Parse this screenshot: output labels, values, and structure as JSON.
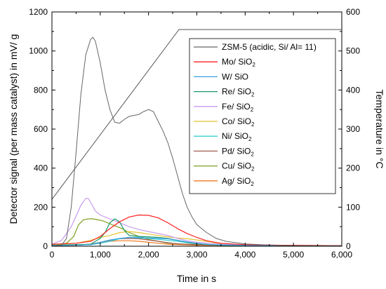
{
  "chart_data": {
    "type": "line",
    "title": "",
    "xlabel": "Time in s",
    "ylabel": "Detector signal (per mass catalyst) in mV/ g",
    "y2label": "Temperature in °C",
    "xlim": [
      0,
      6000
    ],
    "ylim": [
      0,
      1200
    ],
    "y2lim": [
      0,
      600
    ],
    "x_ticks": [
      0,
      1000,
      2000,
      3000,
      4000,
      5000,
      6000
    ],
    "x_tick_labels": [
      "0",
      "1,000",
      "2,000",
      "3,000",
      "4,000",
      "5,000",
      "6,000"
    ],
    "y_ticks": [
      0,
      200,
      400,
      600,
      800,
      1000,
      1200
    ],
    "y2_ticks": [
      0,
      100,
      200,
      300,
      400,
      500,
      600
    ],
    "grid": false,
    "legend_position": "top-right",
    "temperature": {
      "axis": "right",
      "color": "#555555",
      "points": [
        [
          0,
          120
        ],
        [
          2630,
          555
        ],
        [
          6000,
          555
        ]
      ]
    },
    "series": [
      {
        "name": "ZSM-5 (acidic, Si/ Al= 11)",
        "color": "#666666",
        "points": [
          [
            0,
            0
          ],
          [
            200,
            5
          ],
          [
            300,
            40
          ],
          [
            400,
            200
          ],
          [
            500,
            480
          ],
          [
            600,
            780
          ],
          [
            700,
            980
          ],
          [
            800,
            1060
          ],
          [
            850,
            1070
          ],
          [
            900,
            1050
          ],
          [
            1000,
            940
          ],
          [
            1100,
            800
          ],
          [
            1200,
            700
          ],
          [
            1300,
            635
          ],
          [
            1400,
            630
          ],
          [
            1500,
            650
          ],
          [
            1600,
            665
          ],
          [
            1700,
            670
          ],
          [
            1800,
            675
          ],
          [
            1900,
            690
          ],
          [
            2000,
            700
          ],
          [
            2100,
            690
          ],
          [
            2200,
            640
          ],
          [
            2300,
            590
          ],
          [
            2400,
            530
          ],
          [
            2500,
            450
          ],
          [
            2600,
            360
          ],
          [
            2700,
            270
          ],
          [
            2800,
            200
          ],
          [
            2900,
            150
          ],
          [
            3000,
            110
          ],
          [
            3200,
            70
          ],
          [
            3400,
            40
          ],
          [
            3600,
            25
          ],
          [
            4000,
            12
          ],
          [
            4600,
            5
          ],
          [
            5000,
            3
          ],
          [
            6000,
            2
          ]
        ]
      },
      {
        "name": "Mo/ SiO2",
        "color": "#ff2020",
        "points": [
          [
            0,
            10
          ],
          [
            500,
            15
          ],
          [
            800,
            25
          ],
          [
            1000,
            50
          ],
          [
            1200,
            90
          ],
          [
            1400,
            125
          ],
          [
            1600,
            150
          ],
          [
            1800,
            160
          ],
          [
            2000,
            158
          ],
          [
            2200,
            145
          ],
          [
            2400,
            120
          ],
          [
            2600,
            90
          ],
          [
            2800,
            65
          ],
          [
            3000,
            45
          ],
          [
            3200,
            28
          ],
          [
            3500,
            15
          ],
          [
            4000,
            8
          ],
          [
            5000,
            4
          ],
          [
            6000,
            3
          ]
        ]
      },
      {
        "name": "W/ SiO",
        "color": "#3ba3e0",
        "points": [
          [
            0,
            2
          ],
          [
            800,
            8
          ],
          [
            1000,
            20
          ],
          [
            1200,
            32
          ],
          [
            1400,
            40
          ],
          [
            1600,
            45
          ],
          [
            1800,
            45
          ],
          [
            2000,
            42
          ],
          [
            2200,
            40
          ],
          [
            2400,
            38
          ],
          [
            2600,
            30
          ],
          [
            2800,
            22
          ],
          [
            3000,
            15
          ],
          [
            3300,
            8
          ],
          [
            4000,
            4
          ],
          [
            6000,
            2
          ]
        ]
      },
      {
        "name": "Re/ SiO2",
        "color": "#1a9a6a",
        "points": [
          [
            0,
            5
          ],
          [
            800,
            10
          ],
          [
            1000,
            40
          ],
          [
            1100,
            70
          ],
          [
            1200,
            120
          ],
          [
            1300,
            140
          ],
          [
            1400,
            125
          ],
          [
            1500,
            80
          ],
          [
            1600,
            55
          ],
          [
            1800,
            50
          ],
          [
            2000,
            48
          ],
          [
            2200,
            45
          ],
          [
            2400,
            40
          ],
          [
            2600,
            30
          ],
          [
            2800,
            20
          ],
          [
            3000,
            12
          ],
          [
            3500,
            5
          ],
          [
            6000,
            2
          ]
        ]
      },
      {
        "name": "Fe/ SiO2",
        "color": "#c89bf0",
        "points": [
          [
            0,
            10
          ],
          [
            200,
            30
          ],
          [
            400,
            100
          ],
          [
            600,
            210
          ],
          [
            700,
            245
          ],
          [
            750,
            245
          ],
          [
            800,
            225
          ],
          [
            900,
            180
          ],
          [
            1000,
            160
          ],
          [
            1200,
            140
          ],
          [
            1400,
            120
          ],
          [
            1600,
            100
          ],
          [
            1800,
            85
          ],
          [
            2000,
            75
          ],
          [
            2200,
            65
          ],
          [
            2400,
            55
          ],
          [
            2600,
            40
          ],
          [
            2800,
            28
          ],
          [
            3000,
            20
          ],
          [
            3500,
            10
          ],
          [
            4000,
            6
          ],
          [
            6000,
            3
          ]
        ]
      },
      {
        "name": "Co/ SiO2",
        "color": "#e3c233",
        "points": [
          [
            0,
            8
          ],
          [
            500,
            15
          ],
          [
            800,
            30
          ],
          [
            1000,
            45
          ],
          [
            1200,
            55
          ],
          [
            1400,
            70
          ],
          [
            1600,
            75
          ],
          [
            1800,
            70
          ],
          [
            2000,
            62
          ],
          [
            2200,
            55
          ],
          [
            2400,
            48
          ],
          [
            2600,
            42
          ],
          [
            2800,
            38
          ],
          [
            3000,
            32
          ],
          [
            3200,
            25
          ],
          [
            3500,
            12
          ],
          [
            4000,
            6
          ],
          [
            6000,
            3
          ]
        ]
      },
      {
        "name": "Ni/ SiO2",
        "color": "#35d0d5",
        "points": [
          [
            0,
            5
          ],
          [
            800,
            8
          ],
          [
            1000,
            15
          ],
          [
            1200,
            25
          ],
          [
            1400,
            38
          ],
          [
            1600,
            45
          ],
          [
            1800,
            42
          ],
          [
            2000,
            40
          ],
          [
            2200,
            35
          ],
          [
            2400,
            30
          ],
          [
            2600,
            25
          ],
          [
            2800,
            18
          ],
          [
            3000,
            12
          ],
          [
            3500,
            6
          ],
          [
            6000,
            2
          ]
        ]
      },
      {
        "name": "Pd/ SiO2",
        "color": "#a05a52",
        "points": [
          [
            0,
            5
          ],
          [
            600,
            6
          ],
          [
            800,
            10
          ],
          [
            1000,
            20
          ],
          [
            1200,
            30
          ],
          [
            1400,
            38
          ],
          [
            1600,
            40
          ],
          [
            1800,
            38
          ],
          [
            2000,
            32
          ],
          [
            2200,
            25
          ],
          [
            2400,
            18
          ],
          [
            2600,
            12
          ],
          [
            3000,
            8
          ],
          [
            3500,
            5
          ],
          [
            6000,
            3
          ]
        ]
      },
      {
        "name": "Cu/ SiO2",
        "color": "#80a020",
        "points": [
          [
            0,
            5
          ],
          [
            300,
            15
          ],
          [
            450,
            50
          ],
          [
            550,
            110
          ],
          [
            650,
            135
          ],
          [
            750,
            140
          ],
          [
            850,
            140
          ],
          [
            950,
            135
          ],
          [
            1050,
            130
          ],
          [
            1150,
            120
          ],
          [
            1250,
            110
          ],
          [
            1350,
            100
          ],
          [
            1450,
            90
          ],
          [
            1600,
            70
          ],
          [
            1800,
            50
          ],
          [
            2000,
            35
          ],
          [
            2200,
            25
          ],
          [
            2400,
            15
          ],
          [
            2800,
            10
          ],
          [
            3500,
            5
          ],
          [
            6000,
            2
          ]
        ]
      },
      {
        "name": "Ag/ SiO2",
        "color": "#f07a20",
        "points": [
          [
            0,
            3
          ],
          [
            500,
            5
          ],
          [
            800,
            10
          ],
          [
            1000,
            18
          ],
          [
            1200,
            25
          ],
          [
            1400,
            28
          ],
          [
            1600,
            28
          ],
          [
            1800,
            25
          ],
          [
            2000,
            20
          ],
          [
            2200,
            15
          ],
          [
            2400,
            10
          ],
          [
            3000,
            5
          ],
          [
            4000,
            3
          ],
          [
            6000,
            2
          ]
        ]
      }
    ]
  }
}
